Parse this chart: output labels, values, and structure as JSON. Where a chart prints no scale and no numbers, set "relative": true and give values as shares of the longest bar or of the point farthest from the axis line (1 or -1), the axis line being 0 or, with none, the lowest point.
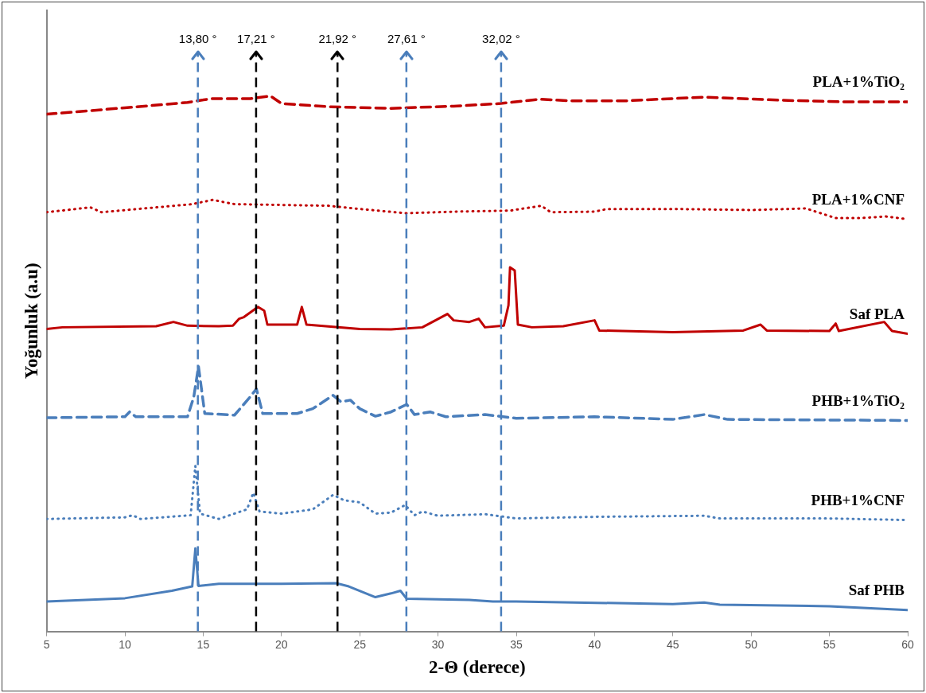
{
  "chart_data": {
    "type": "line",
    "xlabel": "2-Θ (derece)",
    "ylabel": "Yoğunluk (a.u)",
    "relative": true,
    "xlim": [
      5,
      60
    ],
    "xticks": [
      5,
      10,
      15,
      20,
      25,
      30,
      35,
      40,
      45,
      50,
      55,
      60
    ],
    "grid": false,
    "legend": false,
    "marker": "none",
    "series": [
      {
        "name": "PLA+1%TiO₂",
        "color": "#c00000",
        "line_style": "dashed",
        "x": [
          5,
          10,
          14,
          15.5,
          18,
          19.3,
          20,
          23,
          27,
          31,
          34,
          36.5,
          38.5,
          42,
          47,
          52,
          56,
          60
        ],
        "values": [
          0.966,
          0.978,
          0.988,
          0.995,
          0.995,
          1.0,
          0.986,
          0.98,
          0.977,
          0.981,
          0.986,
          0.994,
          0.991,
          0.991,
          0.998,
          0.992,
          0.989,
          0.989
        ]
      },
      {
        "name": "PLA+1%CNF",
        "color": "#c00000",
        "line_style": "dotted",
        "x": [
          5,
          7.8,
          8.5,
          12,
          14.3,
          15.6,
          17,
          23,
          25,
          28,
          31,
          34.6,
          36.6,
          37.2,
          40,
          40.8,
          45,
          50,
          53.5,
          55.4,
          57,
          58.6,
          60
        ],
        "values": [
          0.783,
          0.792,
          0.783,
          0.792,
          0.798,
          0.806,
          0.798,
          0.795,
          0.789,
          0.781,
          0.784,
          0.786,
          0.795,
          0.783,
          0.784,
          0.789,
          0.789,
          0.787,
          0.79,
          0.772,
          0.772,
          0.775,
          0.77
        ]
      },
      {
        "name": "Saf PLA",
        "color": "#c00000",
        "line_style": "solid",
        "x": [
          5,
          6,
          12,
          13.1,
          14,
          16,
          16.9,
          17.3,
          17.6,
          18.5,
          18.9,
          19.1,
          21,
          21.3,
          21.6,
          25,
          27,
          29,
          30.6,
          31,
          32,
          32.6,
          33,
          34.2,
          34.5,
          34.6,
          34.9,
          35.1,
          36,
          38,
          40,
          40.3,
          45,
          49.5,
          50.6,
          51,
          55,
          55.4,
          55.6,
          58.5,
          59,
          60
        ],
        "values": [
          0.565,
          0.568,
          0.57,
          0.578,
          0.571,
          0.57,
          0.571,
          0.584,
          0.587,
          0.606,
          0.599,
          0.573,
          0.573,
          0.606,
          0.573,
          0.565,
          0.564,
          0.568,
          0.593,
          0.581,
          0.578,
          0.584,
          0.568,
          0.571,
          0.609,
          0.68,
          0.674,
          0.573,
          0.568,
          0.57,
          0.581,
          0.562,
          0.559,
          0.562,
          0.573,
          0.562,
          0.561,
          0.575,
          0.561,
          0.578,
          0.561,
          0.556
        ]
      },
      {
        "name": "PHB+1%TiO₂",
        "color": "#4a7ebb",
        "line_style": "dashed",
        "x": [
          5,
          10,
          10.3,
          10.7,
          14,
          14.4,
          14.7,
          15.1,
          17,
          18,
          18.4,
          18.8,
          21,
          22,
          23.3,
          23.8,
          24.4,
          25,
          26,
          27,
          28,
          28.5,
          29.5,
          30.5,
          33,
          35,
          40,
          45,
          47,
          48.5,
          60
        ],
        "values": [
          0.399,
          0.401,
          0.41,
          0.401,
          0.401,
          0.438,
          0.495,
          0.407,
          0.404,
          0.438,
          0.453,
          0.407,
          0.407,
          0.416,
          0.441,
          0.429,
          0.432,
          0.416,
          0.402,
          0.41,
          0.424,
          0.405,
          0.41,
          0.401,
          0.405,
          0.398,
          0.401,
          0.396,
          0.405,
          0.396,
          0.394
        ]
      },
      {
        "name": "PHB+1%CNF",
        "color": "#4a7ebb",
        "line_style": "dotted",
        "x": [
          5,
          10,
          10.5,
          11,
          14.2,
          14.5,
          14.8,
          16,
          17.8,
          18.2,
          18.6,
          20,
          22,
          23.3,
          24,
          25,
          26,
          27,
          27.9,
          28.5,
          29,
          30,
          33,
          35,
          40,
          47,
          48,
          55,
          60
        ],
        "values": [
          0.21,
          0.213,
          0.217,
          0.21,
          0.217,
          0.309,
          0.22,
          0.21,
          0.228,
          0.259,
          0.224,
          0.22,
          0.228,
          0.255,
          0.245,
          0.241,
          0.22,
          0.222,
          0.236,
          0.217,
          0.224,
          0.216,
          0.219,
          0.211,
          0.214,
          0.216,
          0.211,
          0.211,
          0.208
        ]
      },
      {
        "name": "Saf PHB",
        "color": "#4a7ebb",
        "line_style": "solid",
        "x": [
          5,
          10,
          13,
          14.3,
          14.5,
          14.7,
          16,
          20,
          23.5,
          24.3,
          26,
          27,
          27.6,
          28,
          32,
          33.5,
          35,
          45,
          47,
          48,
          55,
          60
        ],
        "values": [
          0.056,
          0.062,
          0.076,
          0.084,
          0.155,
          0.085,
          0.089,
          0.089,
          0.09,
          0.084,
          0.064,
          0.071,
          0.076,
          0.061,
          0.059,
          0.056,
          0.056,
          0.051,
          0.054,
          0.05,
          0.047,
          0.04
        ]
      }
    ],
    "ref_lines": [
      {
        "axis": "x",
        "value": 14.66,
        "color": "#4a7ebb",
        "line_style": "dashed"
      },
      {
        "axis": "x",
        "value": 18.38,
        "color": "#000000",
        "line_style": "dashed"
      },
      {
        "axis": "x",
        "value": 23.58,
        "color": "#000000",
        "line_style": "dashed"
      },
      {
        "axis": "x",
        "value": 27.98,
        "color": "#4a7ebb",
        "line_style": "dashed"
      },
      {
        "axis": "x",
        "value": 34.03,
        "color": "#4a7ebb",
        "line_style": "dashed"
      }
    ],
    "annotations": [
      "13,80 °",
      "17,21 °",
      "21,92 °",
      "27,61 °",
      "32,02 °"
    ]
  }
}
